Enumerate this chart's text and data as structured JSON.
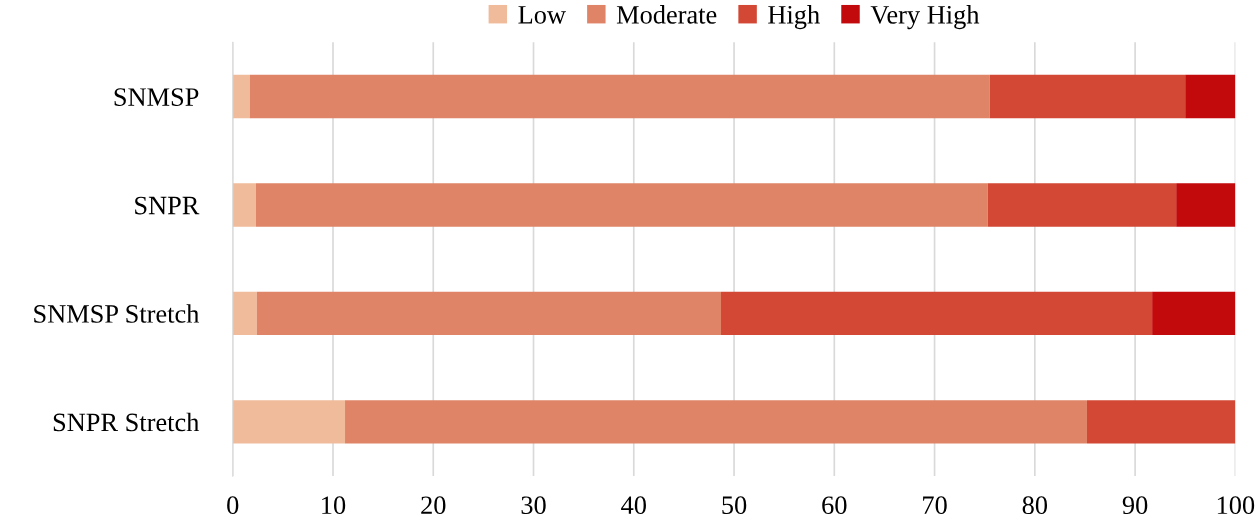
{
  "chart_data": {
    "type": "bar",
    "orientation": "horizontal",
    "stacked": true,
    "categories": [
      "SNMSP",
      "SNPR",
      "SNMSP Stretch",
      "SNPR Stretch"
    ],
    "series": [
      {
        "name": "Low",
        "color": "#f0bb9b",
        "values": [
          1.7,
          2.3,
          2.4,
          11.2
        ]
      },
      {
        "name": "Moderate",
        "color": "#e08467",
        "values": [
          73.8,
          73.0,
          46.3,
          74.0
        ]
      },
      {
        "name": "High",
        "color": "#d24834",
        "values": [
          19.5,
          18.8,
          43.0,
          14.8
        ]
      },
      {
        "name": "Very High",
        "color": "#c20a0c",
        "values": [
          5.0,
          5.9,
          8.3,
          0
        ]
      }
    ],
    "xlim": [
      0,
      100
    ],
    "xticks": [
      0,
      10,
      20,
      30,
      40,
      50,
      60,
      70,
      80,
      90,
      100
    ],
    "grid": "x",
    "legend": "top"
  }
}
